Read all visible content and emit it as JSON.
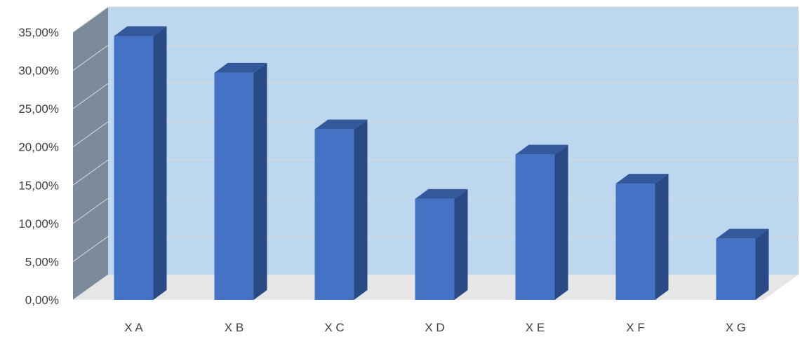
{
  "chart_data": {
    "type": "bar",
    "style": "3d-column",
    "categories": [
      "X A",
      "X B",
      "X C",
      "X D",
      "X E",
      "X F",
      "X G"
    ],
    "values": [
      34.5,
      29.7,
      22.3,
      13.2,
      19.0,
      15.2,
      8.0
    ],
    "ylim": [
      0,
      35
    ],
    "ytick_labels": [
      "0,00%",
      "5,00%",
      "10,00%",
      "15,00%",
      "20,00%",
      "25,00%",
      "30,00%",
      "35,00%"
    ],
    "title": "",
    "xlabel": "",
    "ylabel": "",
    "grid": true,
    "legend": "none",
    "colors": {
      "bar_front": "#4472c4",
      "bar_side": "#2a4a85",
      "bar_top": "#34589c",
      "back_wall": "#bdd7ee",
      "side_wall": "#7b8b9b",
      "floor": "#e6e6e6",
      "gridline": "#d9d9d9"
    }
  }
}
